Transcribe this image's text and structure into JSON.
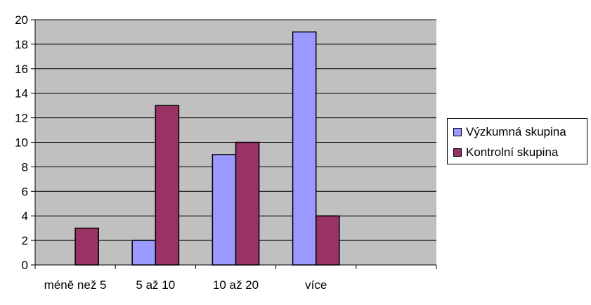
{
  "chart_data": {
    "type": "bar",
    "categories": [
      "méně než 5",
      "5 až 10",
      "10 až 20",
      "více",
      ""
    ],
    "series": [
      {
        "name": "Výzkumná skupina",
        "color": "#9999ff",
        "values": [
          0,
          2,
          9,
          19,
          0
        ]
      },
      {
        "name": "Kontrolní skupina",
        "color": "#993366",
        "values": [
          3,
          13,
          10,
          4,
          0
        ]
      }
    ],
    "ylim": [
      0,
      20
    ],
    "yticks": [
      0,
      2,
      4,
      6,
      8,
      10,
      12,
      14,
      16,
      18,
      20
    ],
    "plot_background": "#c0c0c0",
    "grid": true,
    "legend_position": "right"
  }
}
